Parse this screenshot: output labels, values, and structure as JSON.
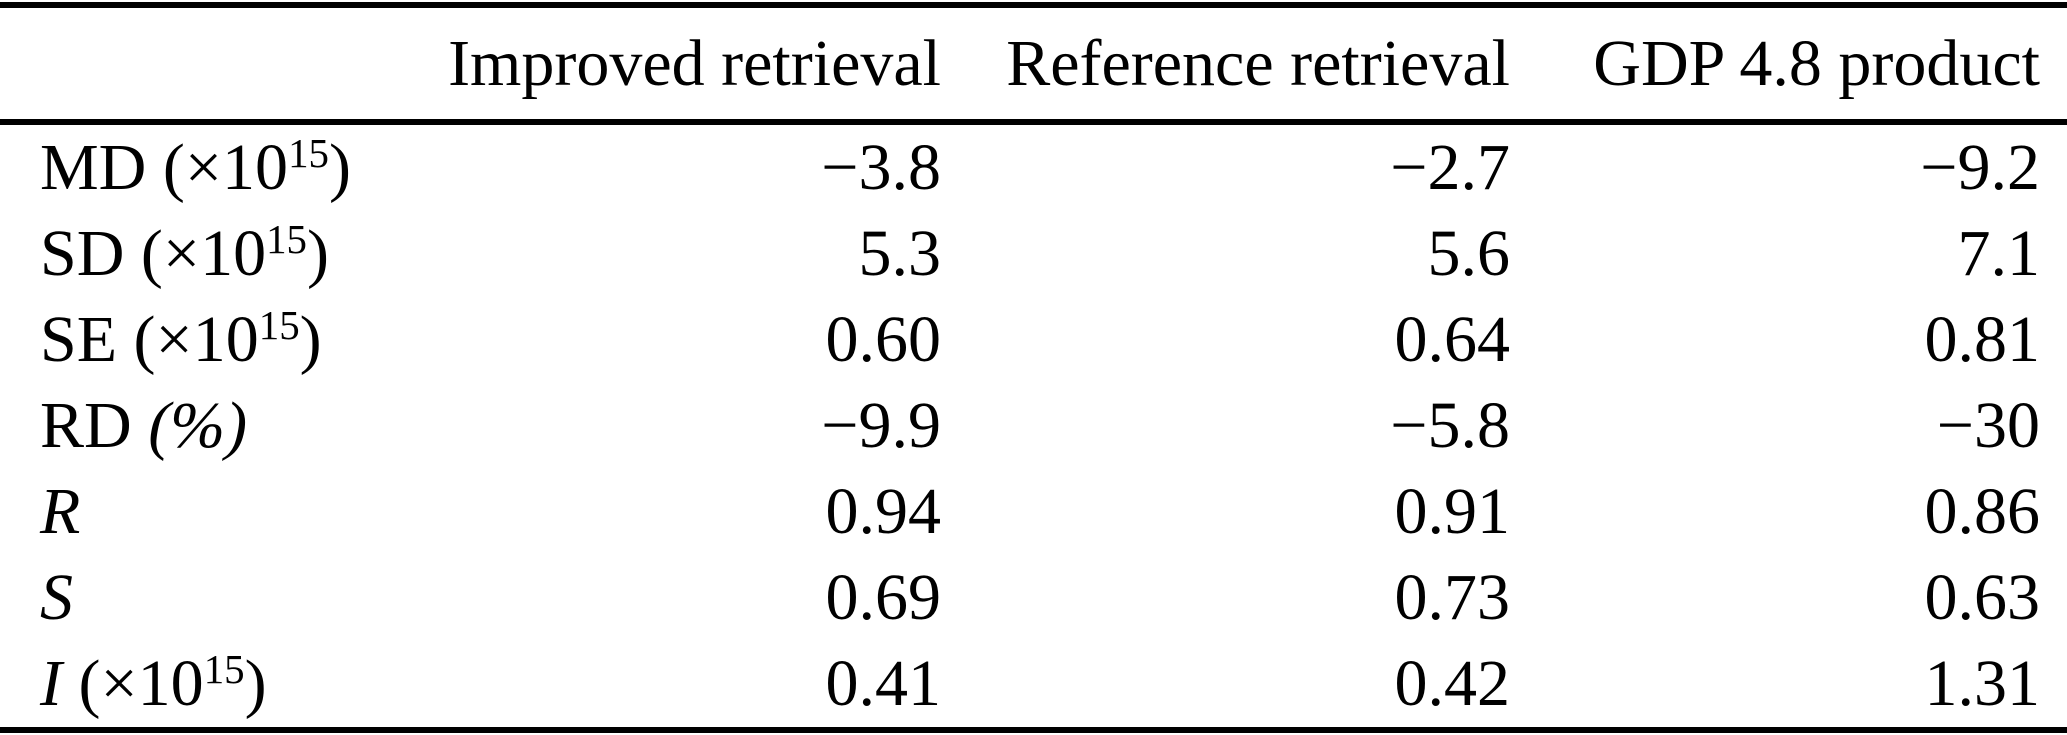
{
  "table": {
    "columns": [
      "",
      "Improved retrieval",
      "Reference retrieval",
      "GDP 4.8 product"
    ],
    "rows": [
      {
        "label": {
          "main": "MD",
          "unit": " (×10",
          "sup": "15",
          "close": ")"
        },
        "values": [
          "−3.8",
          "−2.7",
          "−9.2"
        ]
      },
      {
        "label": {
          "main": "SD",
          "unit": " (×10",
          "sup": "15",
          "close": ")"
        },
        "values": [
          "5.3",
          "5.6",
          "7.1"
        ]
      },
      {
        "label": {
          "main": "SE",
          "unit": " (×10",
          "sup": "15",
          "close": ")"
        },
        "values": [
          "0.60",
          "0.64",
          "0.81"
        ]
      },
      {
        "label": {
          "main": "RD",
          "unit": " (%",
          "sup": "",
          "close": ")"
        },
        "values": [
          "−9.9",
          "−5.8",
          "−30"
        ]
      },
      {
        "label": {
          "main": "R",
          "unit": "",
          "sup": "",
          "close": ""
        },
        "values": [
          "0.94",
          "0.91",
          "0.86"
        ]
      },
      {
        "label": {
          "main": "S",
          "unit": "",
          "sup": "",
          "close": ""
        },
        "values": [
          "0.69",
          "0.73",
          "0.63"
        ]
      },
      {
        "label": {
          "main": "I",
          "unit": " (×10",
          "sup": "15",
          "close": ")"
        },
        "values": [
          "0.41",
          "0.42",
          "1.31"
        ]
      }
    ]
  }
}
